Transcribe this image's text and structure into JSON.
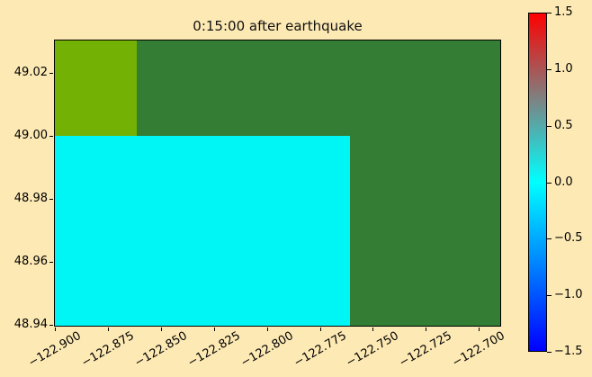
{
  "figure": {
    "background_color": "#FDE9B4"
  },
  "chart_data": {
    "type": "heatmap",
    "title": "0:15:00 after earthquake",
    "xlabel": "",
    "ylabel": "",
    "xlim": [
      -122.9005,
      -122.6895
    ],
    "ylim": [
      48.9395,
      49.0305
    ],
    "grid": false,
    "x_tick_rotation_deg": 30,
    "x_ticks": [
      {
        "value": -122.9,
        "label": "−122.900"
      },
      {
        "value": -122.875,
        "label": "−122.875"
      },
      {
        "value": -122.85,
        "label": "−122.850"
      },
      {
        "value": -122.825,
        "label": "−122.825"
      },
      {
        "value": -122.8,
        "label": "−122.800"
      },
      {
        "value": -122.775,
        "label": "−122.775"
      },
      {
        "value": -122.75,
        "label": "−122.750"
      },
      {
        "value": -122.725,
        "label": "−122.725"
      },
      {
        "value": -122.7,
        "label": "−122.700"
      }
    ],
    "y_ticks": [
      {
        "value": 49.02,
        "label": "49.02"
      },
      {
        "value": 49.0,
        "label": "49.00"
      },
      {
        "value": 48.98,
        "label": "48.98"
      },
      {
        "value": 48.96,
        "label": "48.96"
      },
      {
        "value": 48.94,
        "label": "48.94"
      }
    ],
    "regions": [
      {
        "name": "land-background",
        "color": "#347D34",
        "lon": [
          -122.9005,
          -122.6895
        ],
        "lat": [
          48.9395,
          49.0305
        ]
      },
      {
        "name": "land-patch-upper-left",
        "color": "#74B105",
        "lon": [
          -122.9005,
          -122.8615
        ],
        "lat": [
          49.0,
          49.0305
        ]
      },
      {
        "name": "water-surface",
        "value": 0.0,
        "color": "#00F5F5",
        "lon": [
          -122.9005,
          -122.7605
        ],
        "lat": [
          48.9395,
          49.0
        ]
      }
    ],
    "colorbar": {
      "min": -1.5,
      "max": 1.5,
      "position": "right",
      "ticks": [
        {
          "value": 1.5,
          "label": "1.5"
        },
        {
          "value": 1.0,
          "label": "1.0"
        },
        {
          "value": 0.5,
          "label": "0.5"
        },
        {
          "value": 0.0,
          "label": "0.0"
        },
        {
          "value": -0.5,
          "label": "−0.5"
        },
        {
          "value": -1.0,
          "label": "−1.0"
        },
        {
          "value": -1.5,
          "label": "−1.5"
        }
      ],
      "stops": [
        {
          "value": 1.5,
          "color": "#FF0000"
        },
        {
          "value": 0.0,
          "color": "#00FFFF"
        },
        {
          "value": -1.5,
          "color": "#0000FF"
        }
      ]
    }
  }
}
